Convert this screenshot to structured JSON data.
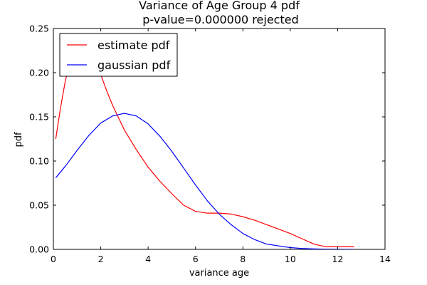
{
  "chart_data": {
    "type": "line",
    "title_lines": [
      "Variance of Age Group 4 pdf",
      "p-value=0.000000  rejected"
    ],
    "xlabel": "variance age",
    "ylabel": "pdf",
    "xlim": [
      0,
      14
    ],
    "ylim": [
      0,
      0.25
    ],
    "xticks": [
      0,
      2,
      4,
      6,
      8,
      10,
      12,
      14
    ],
    "xtick_labels": [
      "0",
      "2",
      "4",
      "6",
      "8",
      "10",
      "12",
      "14"
    ],
    "yticks": [
      0,
      0.05,
      0.1,
      0.15,
      0.2,
      0.25
    ],
    "ytick_labels": [
      "0.00",
      "0.05",
      "0.10",
      "0.15",
      "0.20",
      "0.25"
    ],
    "grid": false,
    "legend_position": "upper-left",
    "clip_to_axes": true,
    "series": [
      {
        "name": "estimate pdf",
        "color": "#ff0000",
        "x": [
          0.1,
          0.3,
          0.5,
          0.65,
          0.8,
          1.0,
          1.2,
          1.4,
          1.6,
          1.8,
          2.0,
          2.2,
          2.5,
          3.0,
          3.5,
          4.0,
          4.5,
          5.0,
          5.5,
          6.0,
          6.5,
          7.0,
          7.5,
          8.0,
          8.5,
          9.0,
          9.5,
          10.0,
          10.5,
          11.0,
          11.5,
          12.0,
          12.5,
          12.7
        ],
        "y": [
          0.125,
          0.16,
          0.19,
          0.207,
          0.218,
          0.227,
          0.231,
          0.23,
          0.224,
          0.213,
          0.198,
          0.183,
          0.163,
          0.135,
          0.113,
          0.093,
          0.077,
          0.063,
          0.05,
          0.043,
          0.041,
          0.041,
          0.04,
          0.037,
          0.033,
          0.028,
          0.023,
          0.018,
          0.012,
          0.006,
          0.003,
          0.003,
          0.003,
          0.003
        ]
      },
      {
        "name": "gaussian pdf",
        "color": "#0000ff",
        "x": [
          0.1,
          0.5,
          1.0,
          1.5,
          2.0,
          2.5,
          3.0,
          3.5,
          4.0,
          4.5,
          5.0,
          5.5,
          6.0,
          6.5,
          7.0,
          7.5,
          8.0,
          8.5,
          9.0,
          9.5,
          10.0,
          10.5,
          11.0,
          11.5,
          12.0,
          12.5,
          12.7
        ],
        "y": [
          0.081,
          0.094,
          0.112,
          0.129,
          0.143,
          0.151,
          0.154,
          0.151,
          0.142,
          0.128,
          0.111,
          0.092,
          0.073,
          0.055,
          0.04,
          0.028,
          0.018,
          0.011,
          0.006,
          0.004,
          0.002,
          0.001,
          0.0005,
          0.0002,
          0.0001,
          0.0,
          0.0
        ]
      }
    ]
  }
}
